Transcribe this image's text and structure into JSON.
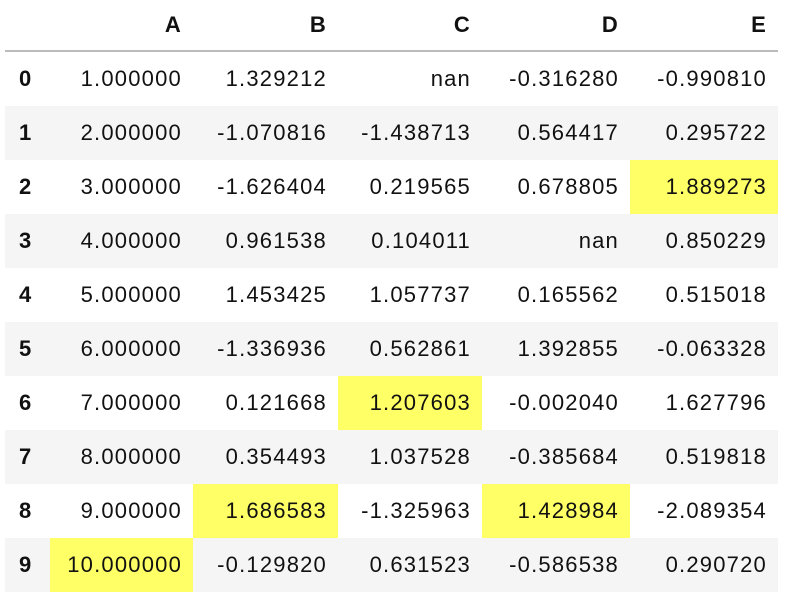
{
  "table": {
    "columns": [
      "",
      "A",
      "B",
      "C",
      "D",
      "E"
    ],
    "rows": [
      [
        "0",
        "1.000000",
        "1.329212",
        "nan",
        "-0.316280",
        "-0.990810"
      ],
      [
        "1",
        "2.000000",
        "-1.070816",
        "-1.438713",
        "0.564417",
        "0.295722"
      ],
      [
        "2",
        "3.000000",
        "-1.626404",
        "0.219565",
        "0.678805",
        "1.889273"
      ],
      [
        "3",
        "4.000000",
        "0.961538",
        "0.104011",
        "nan",
        "0.850229"
      ],
      [
        "4",
        "5.000000",
        "1.453425",
        "1.057737",
        "0.165562",
        "0.515018"
      ],
      [
        "5",
        "6.000000",
        "-1.336936",
        "0.562861",
        "1.392855",
        "-0.063328"
      ],
      [
        "6",
        "7.000000",
        "0.121668",
        "1.207603",
        "-0.002040",
        "1.627796"
      ],
      [
        "7",
        "8.000000",
        "0.354493",
        "1.037528",
        "-0.385684",
        "0.519818"
      ],
      [
        "8",
        "9.000000",
        "1.686583",
        "-1.325963",
        "1.428984",
        "-2.089354"
      ],
      [
        "9",
        "10.000000",
        "-0.129820",
        "0.631523",
        "-0.586538",
        "0.290720"
      ]
    ],
    "highlight_color": "#ffff66",
    "highlighted": [
      {
        "row": "2",
        "column": "E"
      },
      {
        "row": "6",
        "column": "C"
      },
      {
        "row": "8",
        "column": "B"
      },
      {
        "row": "8",
        "column": "D"
      },
      {
        "row": "9",
        "column": "A"
      }
    ]
  }
}
